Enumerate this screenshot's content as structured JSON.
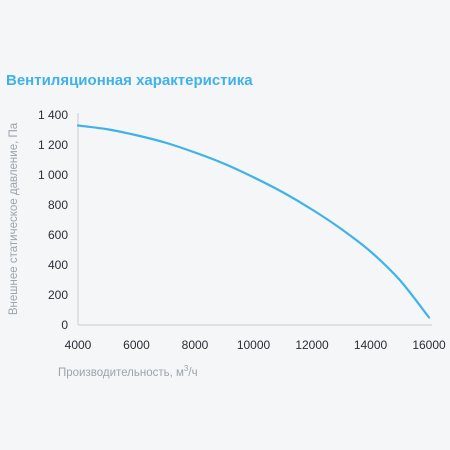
{
  "chart_data": {
    "type": "line",
    "title": "Вентиляционная характеристика",
    "xlabel": "Производительность, м",
    "xlabel_sup": "3",
    "xlabel_suffix": "/ч",
    "ylabel": "Внешнее статическое давление, Па",
    "xlim": [
      4000,
      16000
    ],
    "ylim": [
      0,
      1400
    ],
    "x_ticks": [
      4000,
      6000,
      8000,
      10000,
      12000,
      14000,
      16000
    ],
    "x_tick_labels": [
      "4000",
      "6000",
      "8000",
      "10000",
      "12000",
      "14000",
      "16000"
    ],
    "y_ticks": [
      0,
      200,
      400,
      600,
      800,
      1000,
      1200,
      1400
    ],
    "y_tick_labels": [
      "0",
      "200",
      "400",
      "600",
      "800",
      "1 000",
      "1 200",
      "1 400"
    ],
    "grid": false,
    "line_color": "#3fb2ea",
    "series": [
      {
        "name": "",
        "x": [
          4000,
          5000,
          6000,
          7000,
          8000,
          9000,
          10000,
          11000,
          12000,
          13000,
          14000,
          15000,
          16000
        ],
        "y": [
          1330,
          1305,
          1265,
          1215,
          1150,
          1075,
          985,
          885,
          770,
          640,
          490,
          300,
          50
        ]
      }
    ]
  }
}
